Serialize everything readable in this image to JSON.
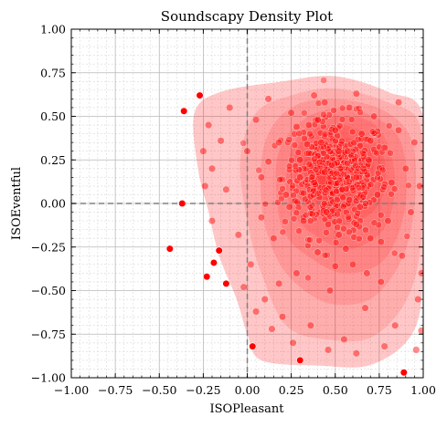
{
  "chart_data": {
    "type": "scatter",
    "title": "Soundscapy Density Plot",
    "xlabel": "ISOPleasant",
    "ylabel": "ISOEventful",
    "xlim": [
      -1.0,
      1.0
    ],
    "ylim": [
      -1.0,
      1.0
    ],
    "x_ticks": [
      -1.0,
      -0.75,
      -0.5,
      -0.25,
      0.0,
      0.25,
      0.5,
      0.75,
      1.0
    ],
    "y_ticks": [
      -1.0,
      -0.75,
      -0.5,
      -0.25,
      0.0,
      0.25,
      0.5,
      0.75,
      1.0
    ],
    "x_tick_labels": [
      "−1.00",
      "−0.75",
      "−0.50",
      "−0.25",
      "0.00",
      "0.25",
      "0.50",
      "0.75",
      "1.00"
    ],
    "y_tick_labels": [
      "−1.00",
      "−0.75",
      "−0.50",
      "−0.25",
      "0.00",
      "0.25",
      "0.50",
      "0.75",
      "1.00"
    ],
    "grid": true,
    "minor_grid": true,
    "reference_lines": {
      "x": 0.0,
      "y": 0.0,
      "style": "dashed",
      "color": "#808080"
    },
    "point_color": "#ff0000",
    "density_color": "#ff0000",
    "density_levels": [
      [
        [
          0.08,
          -0.9
        ],
        [
          0.4,
          -0.93
        ],
        [
          0.72,
          -0.92
        ],
        [
          0.96,
          -0.7
        ],
        [
          1.0,
          -0.2
        ],
        [
          1.0,
          0.5
        ],
        [
          0.8,
          0.64
        ],
        [
          0.5,
          0.73
        ],
        [
          0.2,
          0.7
        ],
        [
          -0.15,
          0.64
        ],
        [
          -0.3,
          0.52
        ],
        [
          -0.28,
          0.2
        ],
        [
          -0.22,
          -0.05
        ],
        [
          -0.16,
          -0.3
        ],
        [
          -0.06,
          -0.55
        ],
        [
          0.0,
          -0.75
        ]
      ],
      [
        [
          0.22,
          -0.7
        ],
        [
          0.45,
          -0.78
        ],
        [
          0.72,
          -0.76
        ],
        [
          0.93,
          -0.5
        ],
        [
          1.0,
          -0.05
        ],
        [
          0.98,
          0.45
        ],
        [
          0.8,
          0.58
        ],
        [
          0.5,
          0.66
        ],
        [
          0.25,
          0.62
        ],
        [
          0.05,
          0.52
        ],
        [
          -0.04,
          0.25
        ],
        [
          0.0,
          -0.1
        ],
        [
          0.08,
          -0.4
        ]
      ],
      [
        [
          0.3,
          -0.48
        ],
        [
          0.5,
          -0.58
        ],
        [
          0.74,
          -0.52
        ],
        [
          0.92,
          -0.2
        ],
        [
          0.95,
          0.3
        ],
        [
          0.8,
          0.52
        ],
        [
          0.5,
          0.6
        ],
        [
          0.25,
          0.55
        ],
        [
          0.1,
          0.35
        ],
        [
          0.08,
          0.0
        ],
        [
          0.16,
          -0.3
        ]
      ],
      [
        [
          0.34,
          -0.3
        ],
        [
          0.55,
          -0.4
        ],
        [
          0.78,
          -0.32
        ],
        [
          0.9,
          0.0
        ],
        [
          0.86,
          0.38
        ],
        [
          0.6,
          0.54
        ],
        [
          0.35,
          0.5
        ],
        [
          0.18,
          0.3
        ],
        [
          0.17,
          0.0
        ],
        [
          0.22,
          -0.18
        ]
      ],
      [
        [
          0.38,
          -0.18
        ],
        [
          0.58,
          -0.26
        ],
        [
          0.78,
          -0.14
        ],
        [
          0.84,
          0.15
        ],
        [
          0.74,
          0.44
        ],
        [
          0.5,
          0.5
        ],
        [
          0.3,
          0.4
        ],
        [
          0.22,
          0.15
        ],
        [
          0.26,
          -0.05
        ]
      ],
      [
        [
          0.4,
          -0.08
        ],
        [
          0.58,
          -0.12
        ],
        [
          0.75,
          0.0
        ],
        [
          0.78,
          0.25
        ],
        [
          0.64,
          0.42
        ],
        [
          0.42,
          0.44
        ],
        [
          0.28,
          0.3
        ],
        [
          0.28,
          0.08
        ]
      ],
      [
        [
          0.4,
          0.0
        ],
        [
          0.56,
          -0.04
        ],
        [
          0.7,
          0.1
        ],
        [
          0.7,
          0.3
        ],
        [
          0.55,
          0.38
        ],
        [
          0.38,
          0.35
        ],
        [
          0.32,
          0.2
        ]
      ],
      [
        [
          0.38,
          0.05
        ],
        [
          0.52,
          0.02
        ],
        [
          0.62,
          0.14
        ],
        [
          0.6,
          0.28
        ],
        [
          0.46,
          0.32
        ],
        [
          0.36,
          0.24
        ]
      ],
      [
        [
          0.4,
          0.1
        ],
        [
          0.5,
          0.08
        ],
        [
          0.56,
          0.16
        ],
        [
          0.52,
          0.24
        ],
        [
          0.42,
          0.24
        ],
        [
          0.38,
          0.18
        ]
      ]
    ],
    "outlier_points": [
      {
        "x": -0.27,
        "y": 0.62
      },
      {
        "x": -0.36,
        "y": 0.53
      },
      {
        "x": -0.37,
        "y": 0.0
      },
      {
        "x": -0.44,
        "y": -0.26
      },
      {
        "x": -0.16,
        "y": -0.27
      },
      {
        "x": -0.19,
        "y": -0.34
      },
      {
        "x": -0.23,
        "y": -0.42
      },
      {
        "x": -0.12,
        "y": -0.46
      },
      {
        "x": 0.03,
        "y": -0.82
      },
      {
        "x": 0.3,
        "y": -0.9
      },
      {
        "x": 0.89,
        "y": -0.97
      }
    ],
    "core_points": [
      {
        "x": -0.22,
        "y": 0.45
      },
      {
        "x": -0.25,
        "y": 0.3
      },
      {
        "x": -0.2,
        "y": 0.2
      },
      {
        "x": -0.24,
        "y": 0.1
      },
      {
        "x": -0.2,
        "y": -0.1
      },
      {
        "x": -0.15,
        "y": 0.36
      },
      {
        "x": -0.1,
        "y": 0.55
      },
      {
        "x": -0.12,
        "y": 0.08
      },
      {
        "x": -0.05,
        "y": -0.18
      },
      {
        "x": 0.0,
        "y": 0.3
      },
      {
        "x": 0.02,
        "y": -0.35
      },
      {
        "x": 0.05,
        "y": 0.48
      },
      {
        "x": 0.08,
        "y": 0.15
      },
      {
        "x": 0.1,
        "y": -0.55
      },
      {
        "x": 0.12,
        "y": 0.6
      },
      {
        "x": 0.15,
        "y": -0.2
      },
      {
        "x": 0.18,
        "y": 0.35
      },
      {
        "x": 0.2,
        "y": -0.65
      },
      {
        "x": 0.22,
        "y": 0.05
      },
      {
        "x": 0.25,
        "y": 0.52
      },
      {
        "x": 0.28,
        "y": -0.4
      },
      {
        "x": 0.3,
        "y": 0.25
      },
      {
        "x": 0.32,
        "y": -0.1
      },
      {
        "x": 0.35,
        "y": 0.45
      },
      {
        "x": 0.36,
        "y": -0.7
      },
      {
        "x": 0.38,
        "y": 0.12
      },
      {
        "x": 0.4,
        "y": -0.28
      },
      {
        "x": 0.42,
        "y": 0.35
      },
      {
        "x": 0.44,
        "y": 0.58
      },
      {
        "x": 0.45,
        "y": -0.05
      },
      {
        "x": 0.47,
        "y": -0.5
      },
      {
        "x": 0.48,
        "y": 0.22
      },
      {
        "x": 0.5,
        "y": 0.42
      },
      {
        "x": 0.52,
        "y": -0.18
      },
      {
        "x": 0.54,
        "y": 0.08
      },
      {
        "x": 0.55,
        "y": -0.78
      },
      {
        "x": 0.57,
        "y": 0.3
      },
      {
        "x": 0.58,
        "y": 0.55
      },
      {
        "x": 0.6,
        "y": -0.35
      },
      {
        "x": 0.62,
        "y": 0.15
      },
      {
        "x": 0.64,
        "y": -0.02
      },
      {
        "x": 0.65,
        "y": 0.4
      },
      {
        "x": 0.67,
        "y": -0.6
      },
      {
        "x": 0.69,
        "y": 0.25
      },
      {
        "x": 0.7,
        "y": -0.2
      },
      {
        "x": 0.72,
        "y": 0.5
      },
      {
        "x": 0.74,
        "y": 0.05
      },
      {
        "x": 0.76,
        "y": -0.45
      },
      {
        "x": 0.78,
        "y": 0.32
      },
      {
        "x": 0.8,
        "y": -0.1
      },
      {
        "x": 0.82,
        "y": 0.12
      },
      {
        "x": 0.84,
        "y": -0.7
      },
      {
        "x": 0.86,
        "y": 0.42
      },
      {
        "x": 0.88,
        "y": -0.3
      },
      {
        "x": 0.9,
        "y": 0.2
      },
      {
        "x": 0.93,
        "y": -0.05
      },
      {
        "x": 0.95,
        "y": 0.35
      },
      {
        "x": 0.97,
        "y": -0.55
      },
      {
        "x": 0.98,
        "y": 0.1
      },
      {
        "x": 0.99,
        "y": -0.4
      },
      {
        "x": 0.99,
        "y": -0.73
      },
      {
        "x": 0.96,
        "y": -0.84
      },
      {
        "x": 0.78,
        "y": -0.82
      },
      {
        "x": 0.62,
        "y": -0.86
      },
      {
        "x": 0.46,
        "y": -0.84
      },
      {
        "x": 0.26,
        "y": -0.8
      },
      {
        "x": 0.14,
        "y": -0.72
      },
      {
        "x": 0.05,
        "y": -0.62
      },
      {
        "x": -0.02,
        "y": -0.48
      },
      {
        "x": 0.38,
        "y": 0.62
      },
      {
        "x": 0.62,
        "y": 0.63
      },
      {
        "x": 0.86,
        "y": 0.58
      },
      {
        "x": 0.3,
        "y": 0.15
      },
      {
        "x": 0.36,
        "y": 0.04
      },
      {
        "x": 0.44,
        "y": 0.18
      },
      {
        "x": 0.52,
        "y": 0.3
      },
      {
        "x": 0.58,
        "y": 0.02
      },
      {
        "x": 0.66,
        "y": 0.2
      },
      {
        "x": 0.46,
        "y": -0.12
      },
      {
        "x": 0.34,
        "y": 0.34
      },
      {
        "x": 0.56,
        "y": -0.26
      },
      {
        "x": 0.7,
        "y": 0.36
      },
      {
        "x": 0.4,
        "y": 0.48
      },
      {
        "x": 0.62,
        "y": -0.12
      },
      {
        "x": 0.24,
        "y": -0.02
      },
      {
        "x": 0.76,
        "y": -0.22
      },
      {
        "x": 0.5,
        "y": -0.36
      },
      {
        "x": 0.28,
        "y": 0.44
      },
      {
        "x": 0.12,
        "y": 0.24
      },
      {
        "x": 0.18,
        "y": -0.46
      },
      {
        "x": 0.08,
        "y": -0.08
      },
      {
        "x": 0.68,
        "y": -0.4
      }
    ]
  }
}
